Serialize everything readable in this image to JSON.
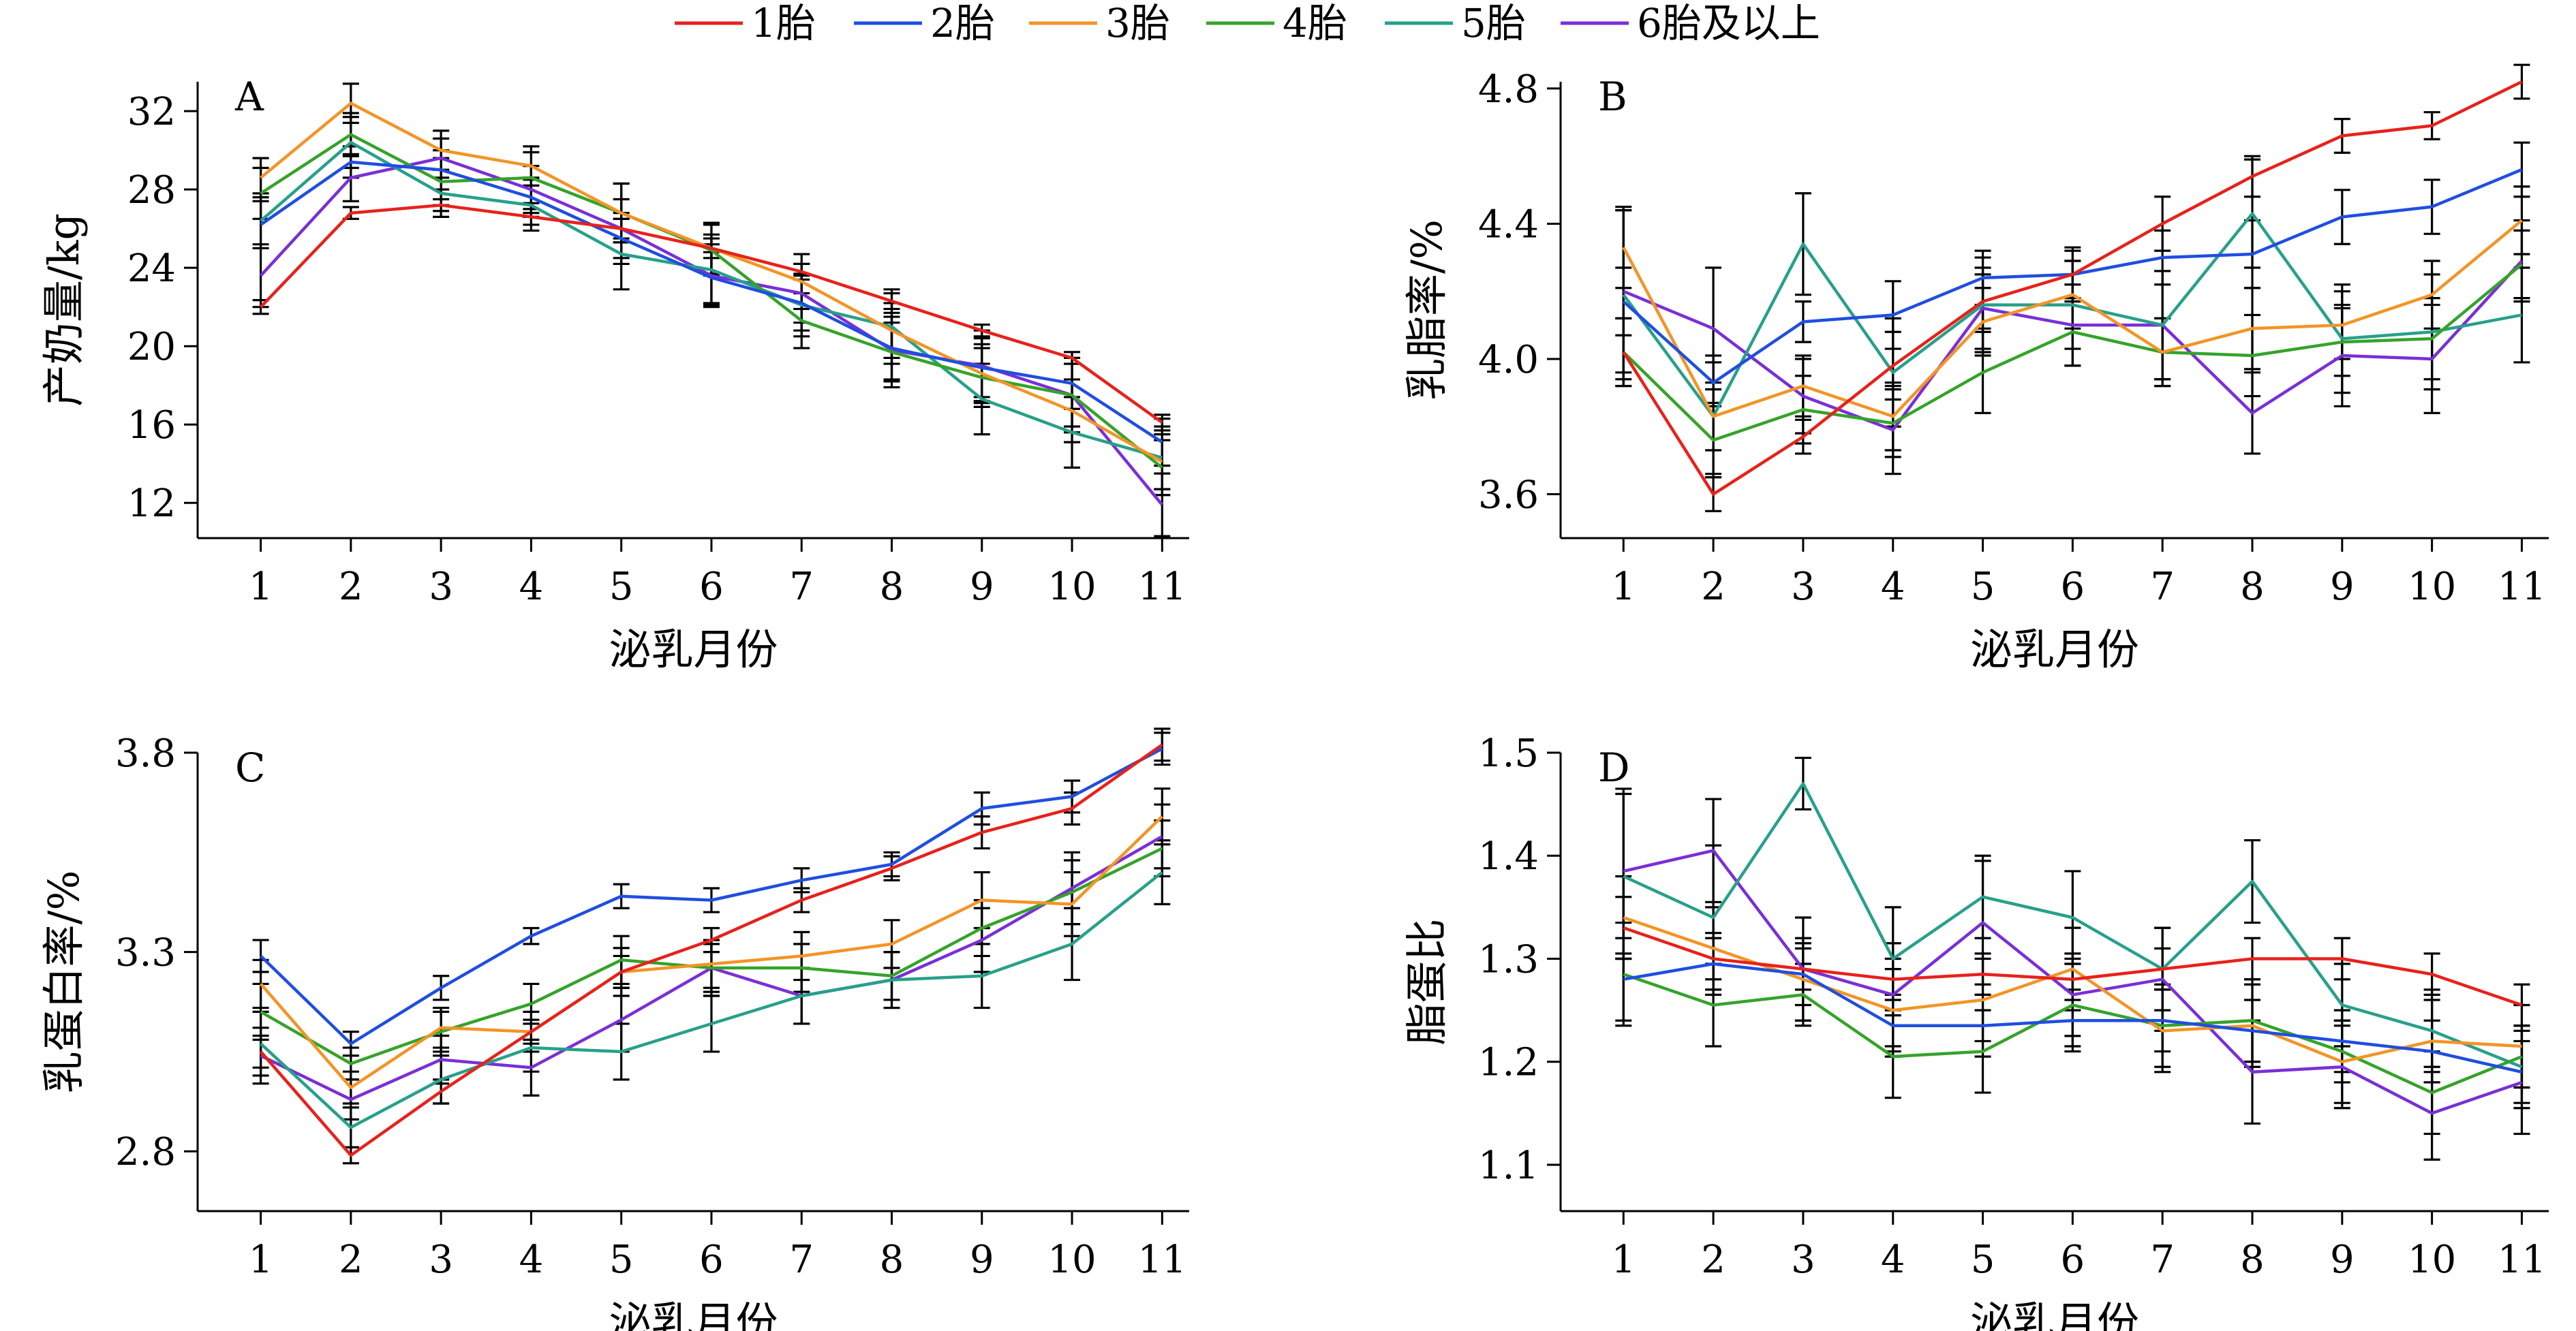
{
  "legend": [
    "1胎",
    "2胎",
    "3胎",
    "4胎",
    "5胎",
    "6胎及以上"
  ],
  "colors": {
    "1胎": "#e8211b",
    "2胎": "#1f4ee0",
    "3胎": "#f39426",
    "4胎": "#35a32a",
    "5胎": "#27a08a",
    "6胎及以上": "#7a2fd6"
  },
  "chart_data": [
    {
      "type": "line",
      "panel": "A",
      "xlabel": "泌乳月份",
      "ylabel": "产奶量/kg",
      "x": [
        1,
        2,
        3,
        4,
        5,
        6,
        7,
        8,
        9,
        10,
        11
      ],
      "xlim": [
        0.3,
        11.3
      ],
      "ylim": [
        10.2,
        33.5
      ],
      "yticks": [
        12,
        16,
        20,
        24,
        28,
        32
      ],
      "series": [
        {
          "name": "1胎",
          "values": [
            22.0,
            26.8,
            27.2,
            26.6,
            26.0,
            25.0,
            23.8,
            22.3,
            20.8,
            19.4,
            16.1
          ]
        },
        {
          "name": "2胎",
          "values": [
            26.2,
            29.4,
            29.0,
            27.6,
            25.5,
            23.5,
            22.2,
            19.9,
            18.9,
            18.1,
            15.1
          ]
        },
        {
          "name": "3胎",
          "values": [
            28.6,
            32.4,
            30.0,
            29.2,
            26.8,
            25.0,
            23.3,
            20.8,
            18.6,
            16.7,
            14.1
          ]
        },
        {
          "name": "4胎",
          "values": [
            27.8,
            30.8,
            28.4,
            28.6,
            26.8,
            24.9,
            21.3,
            19.7,
            18.4,
            17.5,
            13.8
          ]
        },
        {
          "name": "5胎",
          "values": [
            26.4,
            30.4,
            27.8,
            27.2,
            24.7,
            23.9,
            22.1,
            21.0,
            17.3,
            15.6,
            14.3
          ]
        },
        {
          "name": "6胎及以上",
          "values": [
            23.6,
            28.6,
            29.6,
            28.0,
            26.0,
            23.6,
            22.7,
            19.8,
            19.0,
            17.5,
            11.9
          ]
        }
      ],
      "errors": [
        [
          0.35,
          0.3,
          0.3,
          0.4,
          0.5,
          0.5,
          0.4,
          0.4,
          0.3,
          0.3,
          0.4
        ],
        [
          1.2,
          0.8,
          1.0,
          1.0,
          1.3,
          1.3,
          1.4,
          1.6,
          1.5,
          1.3,
          1.2
        ],
        [
          1.0,
          1.0,
          1.0,
          1.0,
          1.5,
          1.3,
          1.4,
          1.4,
          1.5,
          1.6,
          1.4
        ],
        [
          1.3,
          1.1,
          1.2,
          1.3,
          1.5,
          1.3,
          1.4,
          1.5,
          1.5,
          1.6,
          1.4
        ],
        [
          1.4,
          1.3,
          1.2,
          1.3,
          1.8,
          1.8,
          1.6,
          1.9,
          1.8,
          1.8,
          1.6
        ],
        [
          1.6,
          1.2,
          1.0,
          1.2,
          1.5,
          1.6,
          1.5,
          1.9,
          1.8,
          1.9,
          1.6
        ]
      ]
    },
    {
      "type": "line",
      "panel": "B",
      "xlabel": "泌乳月份",
      "ylabel": "乳脂率/%",
      "x": [
        1,
        2,
        3,
        4,
        5,
        6,
        7,
        8,
        9,
        10,
        11
      ],
      "xlim": [
        0.3,
        11.3
      ],
      "ylim": [
        3.47,
        4.82
      ],
      "yticks": [
        3.6,
        4.0,
        4.4,
        4.8
      ],
      "series": [
        {
          "name": "1胎",
          "values": [
            4.02,
            3.6,
            3.77,
            3.98,
            4.17,
            4.25,
            4.4,
            4.54,
            4.66,
            4.69,
            4.82
          ]
        },
        {
          "name": "2胎",
          "values": [
            4.17,
            3.93,
            4.11,
            4.13,
            4.24,
            4.25,
            4.3,
            4.31,
            4.42,
            4.45,
            4.56
          ]
        },
        {
          "name": "3胎",
          "values": [
            4.33,
            3.83,
            3.92,
            3.83,
            4.11,
            4.19,
            4.02,
            4.09,
            4.1,
            4.19,
            4.41
          ]
        },
        {
          "name": "4胎",
          "values": [
            4.02,
            3.76,
            3.85,
            3.81,
            3.96,
            4.08,
            4.02,
            4.01,
            4.05,
            4.06,
            4.28
          ]
        },
        {
          "name": "5胎",
          "values": [
            4.19,
            3.83,
            4.34,
            3.96,
            4.16,
            4.16,
            4.1,
            4.43,
            4.06,
            4.08,
            4.13
          ]
        },
        {
          "name": "6胎及以上",
          "values": [
            4.2,
            4.09,
            3.89,
            3.79,
            4.15,
            4.1,
            4.1,
            3.84,
            4.01,
            4.0,
            4.29
          ]
        }
      ],
      "errors": [
        [
          0.1,
          0.05,
          0.05,
          0.1,
          0.08,
          0.07,
          0.08,
          0.06,
          0.05,
          0.04,
          0.05
        ],
        [
          0.1,
          0.06,
          0.06,
          0.1,
          0.08,
          0.08,
          0.08,
          0.1,
          0.08,
          0.08,
          0.08
        ],
        [
          0.12,
          0.1,
          0.09,
          0.1,
          0.1,
          0.1,
          0.1,
          0.12,
          0.1,
          0.1,
          0.1
        ],
        [
          0.1,
          0.1,
          0.1,
          0.1,
          0.12,
          0.1,
          0.1,
          0.12,
          0.1,
          0.12,
          0.1
        ],
        [
          0.25,
          0.18,
          0.15,
          0.16,
          0.14,
          0.13,
          0.16,
          0.16,
          0.16,
          0.17,
          0.14
        ],
        [
          0.24,
          0.18,
          0.11,
          0.13,
          0.12,
          0.12,
          0.16,
          0.12,
          0.15,
          0.16,
          0.12
        ]
      ]
    },
    {
      "type": "line",
      "panel": "C",
      "xlabel": "泌乳月份",
      "ylabel": "乳蛋白率/%",
      "x": [
        1,
        2,
        3,
        4,
        5,
        6,
        7,
        8,
        9,
        10,
        11
      ],
      "xlim": [
        0.3,
        11.3
      ],
      "ylim": [
        2.65,
        3.8
      ],
      "yticks": [
        2.8,
        3.3,
        3.8
      ],
      "series": [
        {
          "name": "1胎",
          "values": [
            3.05,
            2.79,
            2.95,
            3.1,
            3.25,
            3.33,
            3.43,
            3.51,
            3.6,
            3.66,
            3.82
          ]
        },
        {
          "name": "2胎",
          "values": [
            3.29,
            3.07,
            3.21,
            3.34,
            3.44,
            3.43,
            3.48,
            3.52,
            3.66,
            3.69,
            3.81
          ]
        },
        {
          "name": "3胎",
          "values": [
            3.22,
            2.96,
            3.11,
            3.1,
            3.25,
            3.27,
            3.29,
            3.32,
            3.43,
            3.42,
            3.64
          ]
        },
        {
          "name": "4胎",
          "values": [
            3.15,
            3.02,
            3.1,
            3.17,
            3.28,
            3.26,
            3.26,
            3.24,
            3.36,
            3.45,
            3.56
          ]
        },
        {
          "name": "5胎",
          "values": [
            3.07,
            2.86,
            2.98,
            3.06,
            3.05,
            3.12,
            3.19,
            3.23,
            3.24,
            3.32,
            3.5
          ]
        },
        {
          "name": "6胎及以上",
          "values": [
            3.04,
            2.93,
            3.03,
            3.01,
            3.13,
            3.26,
            3.19,
            3.23,
            3.33,
            3.46,
            3.59
          ]
        }
      ],
      "errors": [
        [
          0.04,
          0.02,
          0.03,
          0.03,
          0.04,
          0.03,
          0.03,
          0.03,
          0.04,
          0.04,
          0.04
        ],
        [
          0.04,
          0.03,
          0.03,
          0.02,
          0.03,
          0.03,
          0.03,
          0.03,
          0.04,
          0.04,
          0.04
        ],
        [
          0.06,
          0.04,
          0.05,
          0.05,
          0.06,
          0.06,
          0.06,
          0.06,
          0.07,
          0.08,
          0.07
        ],
        [
          0.07,
          0.04,
          0.05,
          0.05,
          0.06,
          0.06,
          0.06,
          0.06,
          0.07,
          0.08,
          0.07
        ],
        [
          0.08,
          0.05,
          0.06,
          0.06,
          0.07,
          0.07,
          0.07,
          0.07,
          0.08,
          0.09,
          0.08
        ],
        [
          0.07,
          0.05,
          0.06,
          0.07,
          0.08,
          0.07,
          0.07,
          0.07,
          0.08,
          0.09,
          0.08
        ]
      ]
    },
    {
      "type": "line",
      "panel": "D",
      "xlabel": "泌乳月份",
      "ylabel": "脂蛋比",
      "x": [
        1,
        2,
        3,
        4,
        5,
        6,
        7,
        8,
        9,
        10,
        11
      ],
      "xlim": [
        0.3,
        11.3
      ],
      "ylim": [
        1.055,
        1.5
      ],
      "yticks": [
        1.1,
        1.2,
        1.3,
        1.4,
        1.5
      ],
      "series": [
        {
          "name": "1胎",
          "values": [
            1.33,
            1.3,
            1.29,
            1.28,
            1.285,
            1.28,
            1.29,
            1.3,
            1.3,
            1.285,
            1.255
          ]
        },
        {
          "name": "2胎",
          "values": [
            1.28,
            1.295,
            1.285,
            1.235,
            1.235,
            1.24,
            1.24,
            1.23,
            1.22,
            1.21,
            1.19
          ]
        },
        {
          "name": "3胎",
          "values": [
            1.34,
            1.31,
            1.28,
            1.25,
            1.26,
            1.29,
            1.23,
            1.235,
            1.2,
            1.22,
            1.215
          ]
        },
        {
          "name": "4胎",
          "values": [
            1.285,
            1.255,
            1.265,
            1.205,
            1.21,
            1.255,
            1.235,
            1.24,
            1.21,
            1.17,
            1.205
          ]
        },
        {
          "name": "5胎",
          "values": [
            1.38,
            1.34,
            1.47,
            1.3,
            1.36,
            1.34,
            1.29,
            1.375,
            1.255,
            1.23,
            1.195
          ]
        },
        {
          "name": "6胎及以上",
          "values": [
            1.385,
            1.405,
            1.29,
            1.265,
            1.335,
            1.265,
            1.28,
            1.19,
            1.195,
            1.15,
            1.18
          ]
        }
      ],
      "errors": [
        [
          0.03,
          0.02,
          0.02,
          0.02,
          0.02,
          0.02,
          0.02,
          0.02,
          0.02,
          0.02,
          0.02
        ],
        [
          0.04,
          0.03,
          0.03,
          0.03,
          0.03,
          0.03,
          0.03,
          0.03,
          0.03,
          0.03,
          0.03
        ],
        [
          0.04,
          0.04,
          0.04,
          0.04,
          0.04,
          0.04,
          0.04,
          0.04,
          0.04,
          0.04,
          0.04
        ],
        [
          0.05,
          0.04,
          0.03,
          0.04,
          0.04,
          0.04,
          0.04,
          0.04,
          0.03,
          0.04,
          0.03
        ],
        [
          0.08,
          0.07,
          0.025,
          0.05,
          0.04,
          0.045,
          0.04,
          0.04,
          0.04,
          0.04,
          0.04
        ],
        [
          0.08,
          0.05,
          0.05,
          0.05,
          0.06,
          0.04,
          0.05,
          0.05,
          0.04,
          0.045,
          0.05
        ]
      ]
    }
  ]
}
